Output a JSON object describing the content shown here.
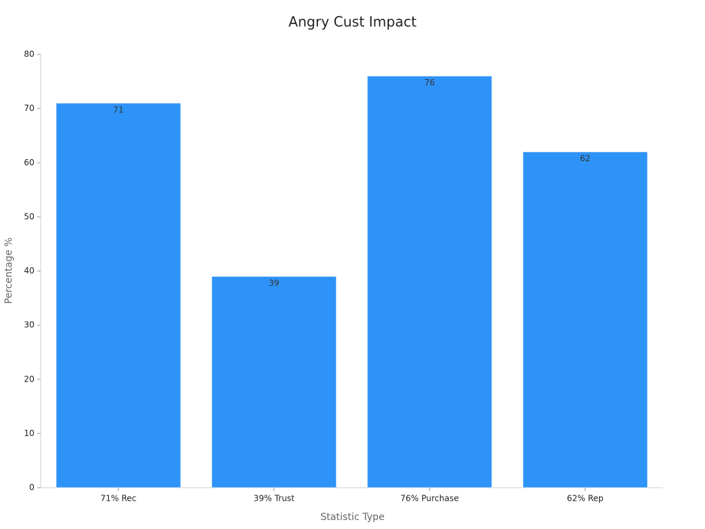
{
  "chart_data": {
    "type": "bar",
    "title": "Angry Cust Impact",
    "x_label": "Statistic Type",
    "y_label": "Percentage %",
    "categories": [
      "71% Rec",
      "39% Trust",
      "76% Purchase",
      "62% Rep"
    ],
    "values": [
      71,
      39,
      76,
      62
    ],
    "color": "#2e93f8",
    "ylim": [
      0,
      80
    ],
    "yticks": [
      0,
      10,
      20,
      30,
      40,
      50,
      60,
      70,
      80
    ]
  }
}
